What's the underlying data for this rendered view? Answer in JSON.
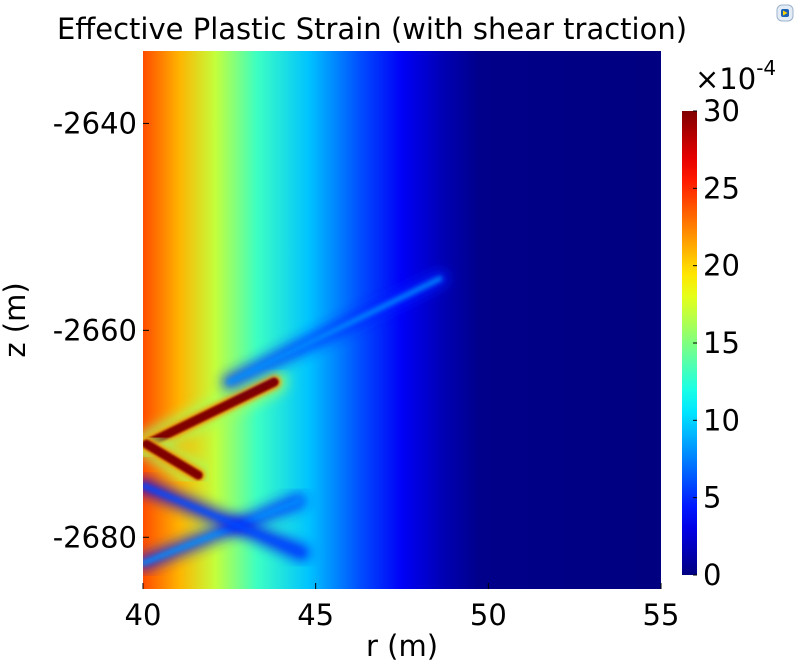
{
  "chart_data": {
    "type": "heatmap",
    "title": "Effective Plastic Strain (with shear traction)",
    "xlabel": "r (m)",
    "ylabel": "z (m)",
    "xlim": [
      40,
      55
    ],
    "ylim": [
      -2685,
      -2633
    ],
    "x_ticks": [
      "40",
      "45",
      "50",
      "55"
    ],
    "y_ticks": [
      "-2640",
      "-2660",
      "-2680"
    ],
    "colorbar": {
      "multiplier_base": "×10",
      "multiplier_exp": "-4",
      "range": [
        0,
        30
      ],
      "ticks": [
        "0",
        "5",
        "10",
        "15",
        "20",
        "25",
        "30"
      ],
      "colormap": "jet"
    },
    "features": [
      {
        "kind": "background_gradient",
        "description": "strain decreasing with r from about 24e-4 at r=40 to about 0 near r=49"
      },
      {
        "kind": "band",
        "from": [
          40.1,
          -2671
        ],
        "to": [
          43.8,
          -2665
        ],
        "peak": 30
      },
      {
        "kind": "band",
        "from": [
          40.1,
          -2671
        ],
        "to": [
          41.6,
          -2674
        ],
        "peak": 30
      },
      {
        "kind": "band",
        "from": [
          42.5,
          -2665
        ],
        "to": [
          48.6,
          -2655
        ],
        "peak": 8
      },
      {
        "kind": "band",
        "from": [
          40.0,
          -2682.5
        ],
        "to": [
          44.5,
          -2676.5
        ],
        "peak": 8
      },
      {
        "kind": "band",
        "from": [
          40.0,
          -2675.0
        ],
        "to": [
          44.6,
          -2681.5
        ],
        "peak": 6
      }
    ]
  },
  "icon": {
    "name": "app-icon"
  }
}
